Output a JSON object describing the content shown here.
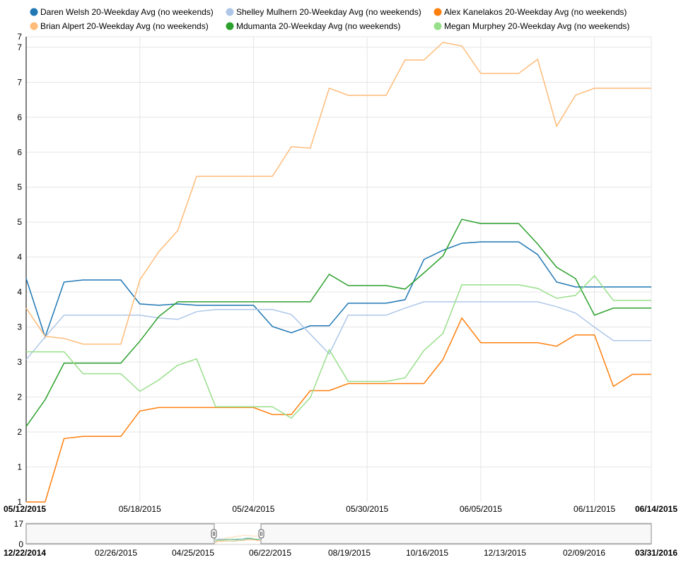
{
  "chart_data": {
    "type": "line",
    "x_range": [
      "05/12/2015",
      "06/14/2015"
    ],
    "x_ticks": [
      "05/12/2015",
      "05/18/2015",
      "05/24/2015",
      "05/30/2015",
      "06/05/2015",
      "06/11/2015",
      "06/14/2015"
    ],
    "y_tick_labels": [
      "1",
      "1",
      "2",
      "2",
      "3",
      "3",
      "4",
      "4",
      "5",
      "5",
      "6",
      "6",
      "7",
      "7"
    ],
    "ylim": [
      1,
      7.6
    ],
    "grid": true,
    "legend_position": "top",
    "dates": [
      "05/12/2015",
      "05/13/2015",
      "05/14/2015",
      "05/15/2015",
      "05/16/2015",
      "05/17/2015",
      "05/18/2015",
      "05/19/2015",
      "05/20/2015",
      "05/21/2015",
      "05/22/2015",
      "05/23/2015",
      "05/24/2015",
      "05/25/2015",
      "05/26/2015",
      "05/27/2015",
      "05/28/2015",
      "05/29/2015",
      "05/30/2015",
      "05/31/2015",
      "06/01/2015",
      "06/02/2015",
      "06/03/2015",
      "06/04/2015",
      "06/05/2015",
      "06/06/2015",
      "06/07/2015",
      "06/08/2015",
      "06/09/2015",
      "06/10/2015",
      "06/11/2015",
      "06/12/2015",
      "06/13/2015",
      "06/14/2015"
    ],
    "series": [
      {
        "name": "Daren Welsh 20-Weekday Avg (no weekends)",
        "color": "#1f77b4",
        "values": [
          4.17,
          3.34,
          4.12,
          4.15,
          4.15,
          4.15,
          3.81,
          3.79,
          3.81,
          3.79,
          3.79,
          3.79,
          3.79,
          3.49,
          3.4,
          3.5,
          3.5,
          3.82,
          3.82,
          3.82,
          3.87,
          4.44,
          4.57,
          4.67,
          4.69,
          4.69,
          4.69,
          4.51,
          4.12,
          4.05,
          4.05,
          4.05,
          4.05,
          4.05
        ]
      },
      {
        "name": "Shelley Mulhern 20-Weekday Avg (no weekends)",
        "color": "#aec7e8",
        "values": [
          3.02,
          3.34,
          3.65,
          3.65,
          3.65,
          3.65,
          3.65,
          3.61,
          3.59,
          3.7,
          3.73,
          3.73,
          3.73,
          3.73,
          3.66,
          3.38,
          3.1,
          3.65,
          3.65,
          3.65,
          3.75,
          3.84,
          3.84,
          3.84,
          3.84,
          3.84,
          3.84,
          3.84,
          3.77,
          3.68,
          3.48,
          3.29,
          3.29,
          3.29
        ]
      },
      {
        "name": "Alex Kanelakos 20-Weekday Avg (no weekends)",
        "color": "#ff7f0e",
        "values": [
          1,
          1,
          1.9,
          1.93,
          1.93,
          1.93,
          2.29,
          2.34,
          2.34,
          2.34,
          2.34,
          2.34,
          2.34,
          2.24,
          2.24,
          2.58,
          2.58,
          2.68,
          2.68,
          2.68,
          2.68,
          2.68,
          3.02,
          3.61,
          3.26,
          3.26,
          3.26,
          3.26,
          3.21,
          3.37,
          3.37,
          2.64,
          2.81,
          2.81
        ]
      },
      {
        "name": "Brian Alpert 20-Weekday Avg (no weekends)",
        "color": "#ffbb78",
        "values": [
          3.75,
          3.35,
          3.32,
          3.24,
          3.24,
          3.24,
          4.15,
          4.55,
          4.85,
          5.62,
          5.62,
          5.62,
          5.62,
          5.62,
          6.04,
          6.02,
          6.87,
          6.77,
          6.77,
          6.77,
          7.27,
          7.27,
          7.52,
          7.47,
          7.08,
          7.08,
          7.08,
          7.28,
          6.33,
          6.77,
          6.87,
          6.87,
          6.87,
          6.87
        ]
      },
      {
        "name": "Mdumanta 20-Weekday Avg (no weekends)",
        "color": "#2ca02c",
        "values": [
          2.07,
          2.45,
          2.97,
          2.97,
          2.97,
          2.97,
          3.28,
          3.63,
          3.84,
          3.84,
          3.84,
          3.84,
          3.84,
          3.84,
          3.84,
          3.84,
          4.23,
          4.07,
          4.07,
          4.07,
          4.02,
          4.25,
          4.49,
          5.01,
          4.95,
          4.95,
          4.95,
          4.66,
          4.33,
          4.17,
          3.65,
          3.75,
          3.75,
          3.75
        ]
      },
      {
        "name": "Megan Murphey 20-Weekday Avg (no weekends)",
        "color": "#98df8a",
        "values": [
          3.13,
          3.13,
          3.13,
          2.82,
          2.82,
          2.82,
          2.57,
          2.73,
          2.94,
          3.03,
          2.35,
          2.35,
          2.35,
          2.35,
          2.19,
          2.48,
          3.16,
          2.71,
          2.71,
          2.71,
          2.76,
          3.15,
          3.39,
          4.08,
          4.08,
          4.08,
          4.08,
          4.03,
          3.89,
          3.93,
          4.21,
          3.86,
          3.86,
          3.86
        ]
      }
    ]
  },
  "navigator": {
    "y_tick_top": "17",
    "y_tick_bottom": "0",
    "x_ticks": [
      "12/22/2014",
      "02/26/2015",
      "04/25/2015",
      "06/22/2015",
      "08/19/2015",
      "10/16/2015",
      "12/13/2015",
      "02/09/2016",
      "03/31/2016"
    ],
    "selection_range": [
      "05/12/2015",
      "06/14/2015"
    ]
  }
}
